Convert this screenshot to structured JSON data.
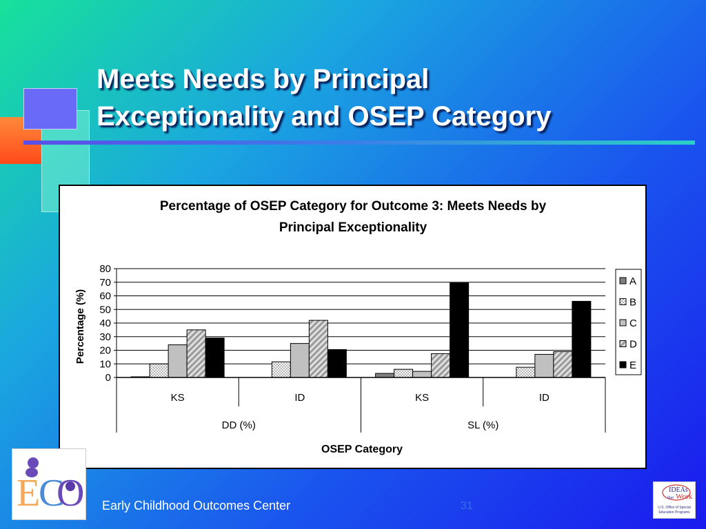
{
  "slide": {
    "title_line1": "Meets Needs by Principal",
    "title_line2": "Exceptionality and OSEP Category",
    "footer": "Early Childhood Outcomes Center",
    "page_number": "31",
    "logo_right_text": [
      "IDEAs",
      "that",
      "Work",
      "U.S. Office of Special",
      "Education Programs"
    ],
    "colors": {
      "title": "#ffffff",
      "background_start": "#17e29a",
      "background_end": "#1a1aee"
    }
  },
  "chart_data": {
    "type": "bar",
    "title_line1": "Percentage of OSEP Category for Outcome 3: Meets Needs by",
    "title_line2": "Principal Exceptionality",
    "xlabel": "OSEP Category",
    "ylabel": "Percentage (%)",
    "ylim": [
      0,
      80
    ],
    "yticks": [
      0,
      10,
      20,
      30,
      40,
      50,
      60,
      70,
      80
    ],
    "grid": true,
    "legend_position": "right",
    "categories": [
      "KS",
      "ID",
      "KS",
      "ID"
    ],
    "groups": [
      {
        "label": "DD (%)",
        "span": [
          0,
          1
        ]
      },
      {
        "label": "SL (%)",
        "span": [
          2,
          3
        ]
      }
    ],
    "series": [
      {
        "name": "A",
        "values": [
          0.5,
          0,
          3,
          0
        ],
        "pattern": "dark-gray"
      },
      {
        "name": "B",
        "values": [
          10,
          11.5,
          6,
          7.5
        ],
        "pattern": "dotted"
      },
      {
        "name": "C",
        "values": [
          24,
          25,
          4.5,
          17
        ],
        "pattern": "light-gray"
      },
      {
        "name": "D",
        "values": [
          35,
          42,
          17.5,
          19
        ],
        "pattern": "hatched"
      },
      {
        "name": "E",
        "values": [
          29,
          20.5,
          69.5,
          56
        ],
        "pattern": "black"
      }
    ]
  }
}
